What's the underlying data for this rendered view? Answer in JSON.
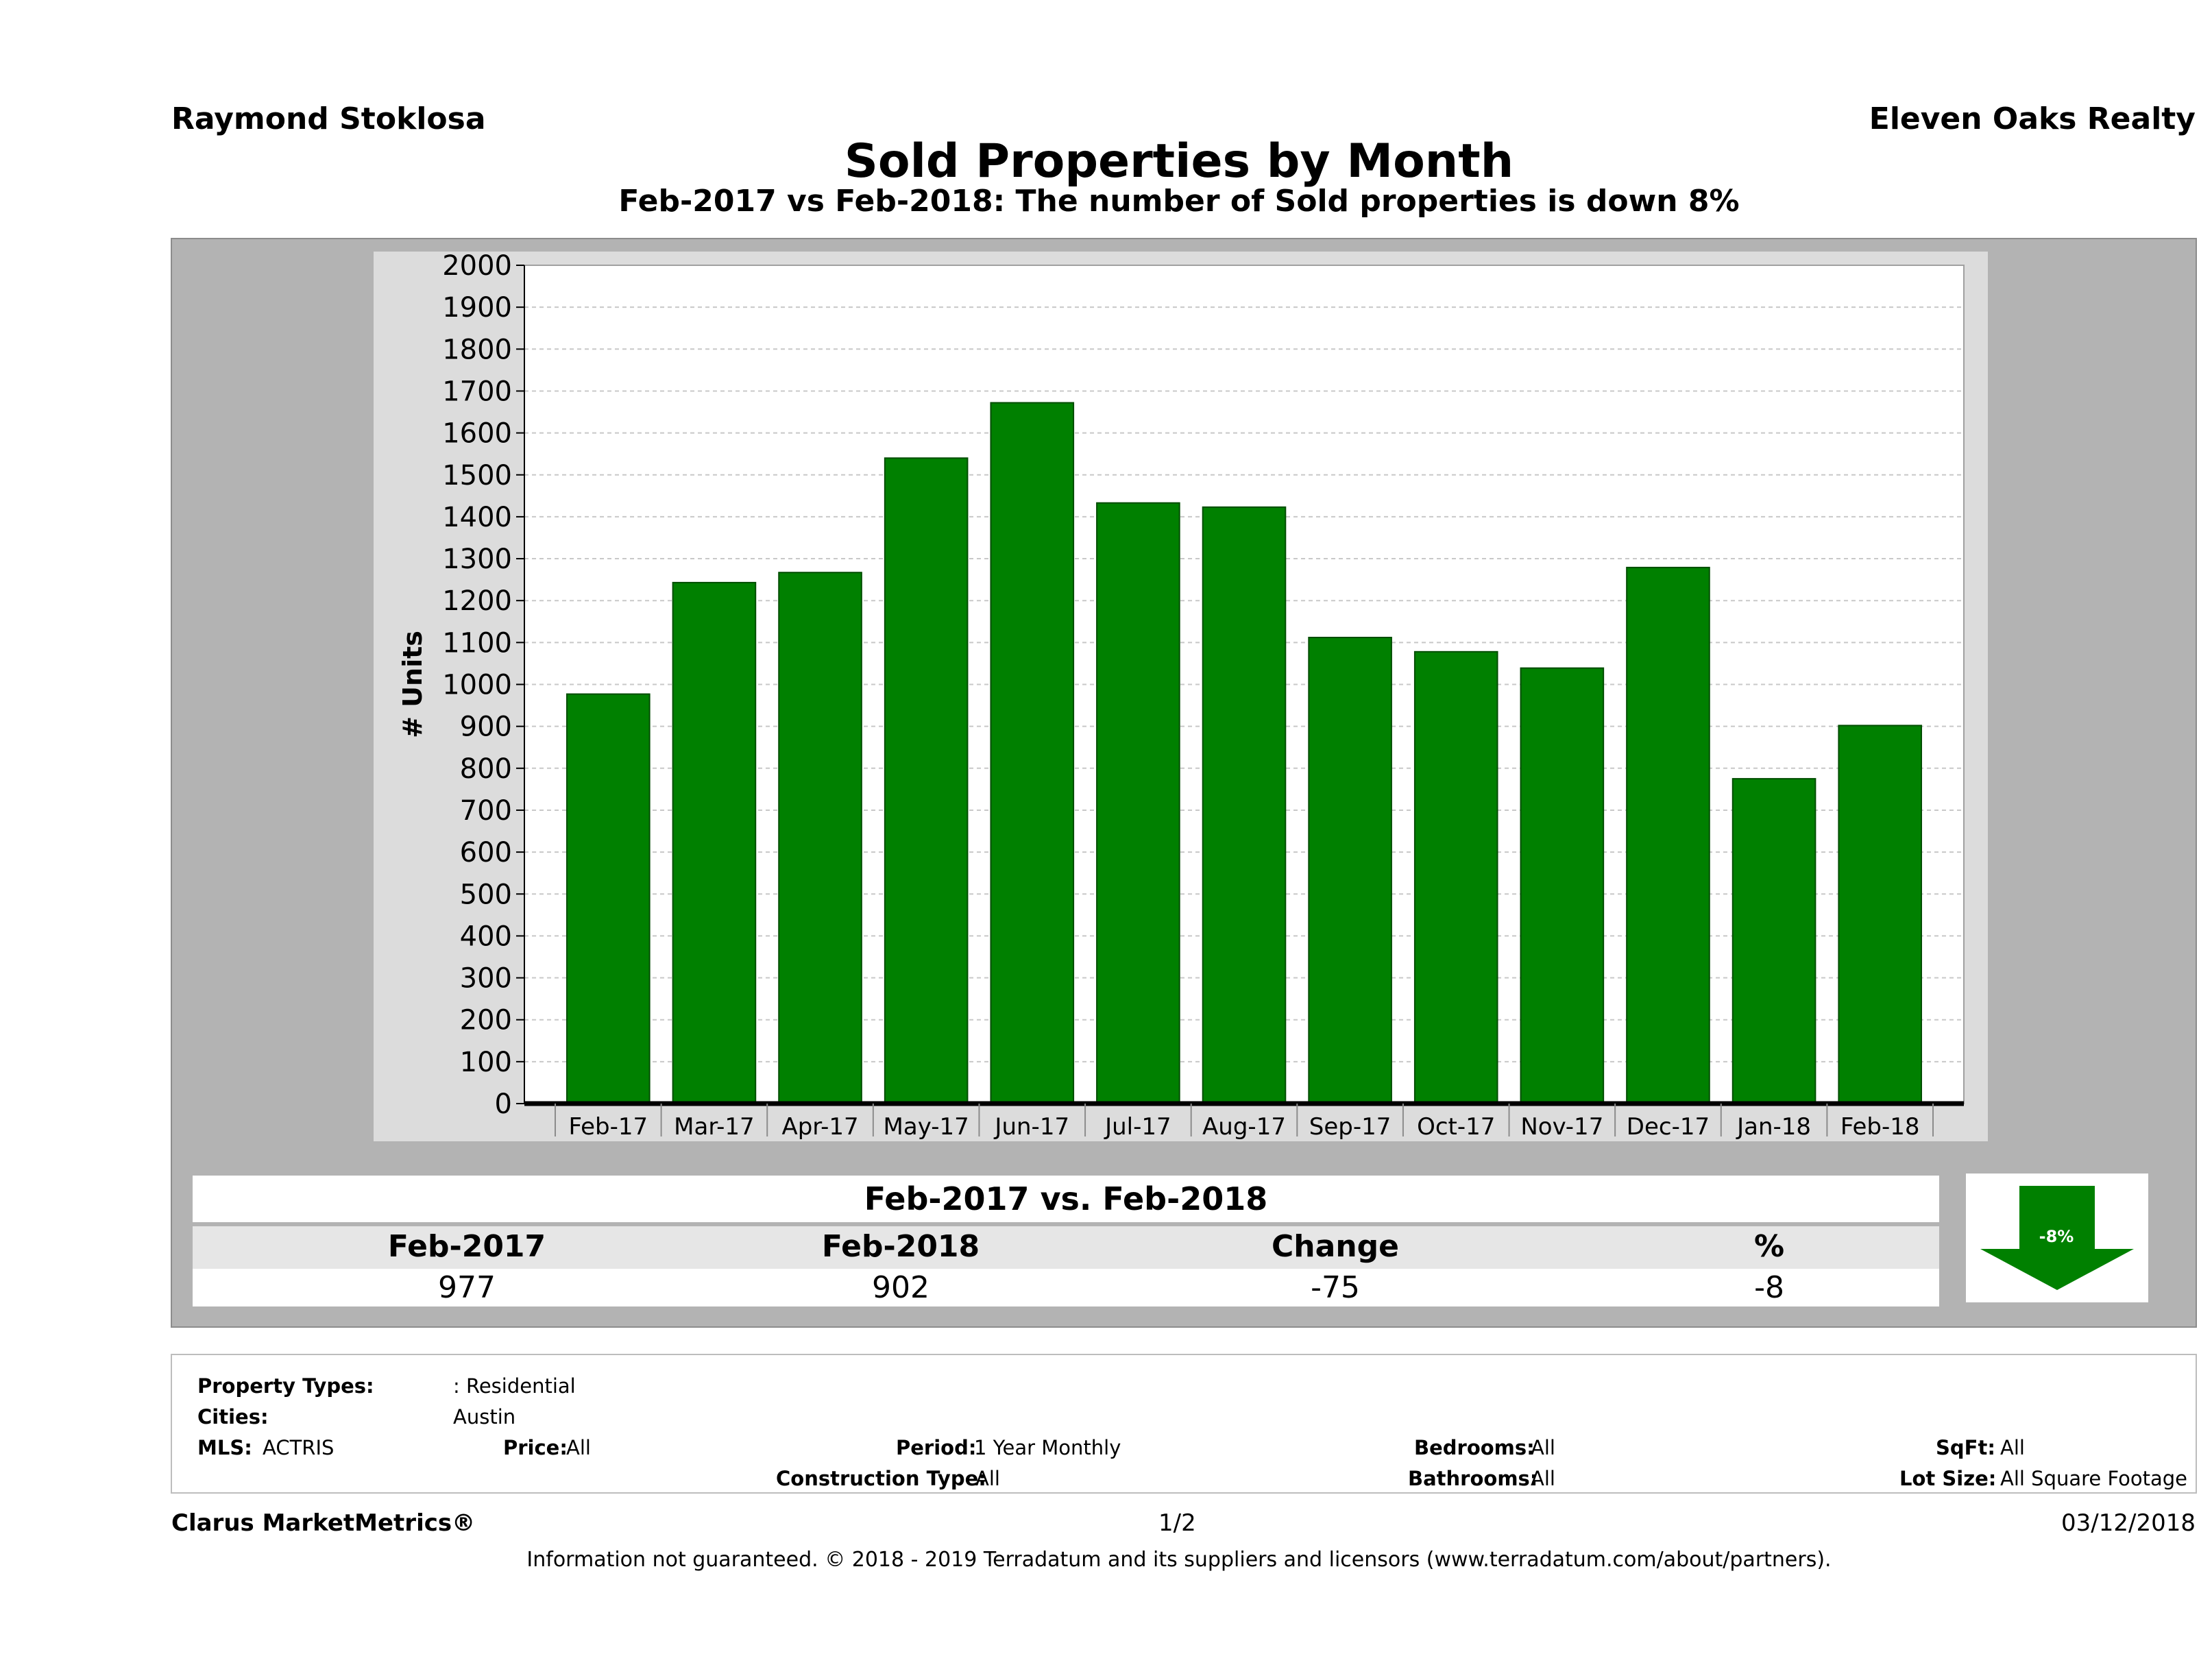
{
  "header": {
    "agent": "Raymond Stoklosa",
    "broker": "Eleven Oaks Realty",
    "title": "Sold Properties by Month",
    "subtitle": "Feb-2017 vs Feb-2018: The number of Sold  properties is down 8%"
  },
  "chart_data": {
    "type": "bar",
    "categories": [
      "Feb-17",
      "Mar-17",
      "Apr-17",
      "May-17",
      "Jun-17",
      "Jul-17",
      "Aug-17",
      "Sep-17",
      "Oct-17",
      "Nov-17",
      "Dec-17",
      "Jan-18",
      "Feb-18"
    ],
    "values": [
      977,
      1243,
      1267,
      1540,
      1672,
      1433,
      1423,
      1112,
      1078,
      1039,
      1279,
      775,
      902
    ],
    "ylabel": "# Units",
    "ylim": [
      0,
      2000
    ],
    "yticks": [
      "0",
      "100",
      "200",
      "300",
      "400",
      "500",
      "600",
      "700",
      "800",
      "900",
      "1000",
      "1100",
      "1200",
      "1300",
      "1400",
      "1500",
      "1600",
      "1700",
      "1800",
      "1900",
      "2000"
    ],
    "grid": true,
    "bar_color": "#008000"
  },
  "summary": {
    "title": "Feb-2017 vs. Feb-2018",
    "headers": [
      "Feb-2017",
      "Feb-2018",
      "Change",
      "%"
    ],
    "values": [
      "977",
      "902",
      "-75",
      "-8"
    ],
    "arrow_label": "-8%",
    "arrow_color": "#008000"
  },
  "criteria": {
    "property_types_label": "Property Types:",
    "property_types_value": ": Residential",
    "cities_label": "Cities:",
    "cities_value": "Austin",
    "mls_label": "MLS:",
    "mls_value": "ACTRIS",
    "price_label": "Price:",
    "price_value": "All",
    "period_label": "Period:",
    "period_value": "1 Year Monthly",
    "bedrooms_label": "Bedrooms:",
    "bedrooms_value": "All",
    "sqft_label": "SqFt:",
    "sqft_value": "All",
    "construction_label": "Construction Type:",
    "construction_value": "All",
    "bathrooms_label": "Bathrooms:",
    "bathrooms_value": "All",
    "lot_label": "Lot Size:",
    "lot_value": "All Square Footage"
  },
  "footer": {
    "brand": "Clarus MarketMetrics®",
    "page": "1/2",
    "date": "03/12/2018",
    "disclaimer": "Information not guaranteed. © 2018 - 2019 Terradatum and its suppliers and licensors (www.terradatum.com/about/partners)."
  }
}
